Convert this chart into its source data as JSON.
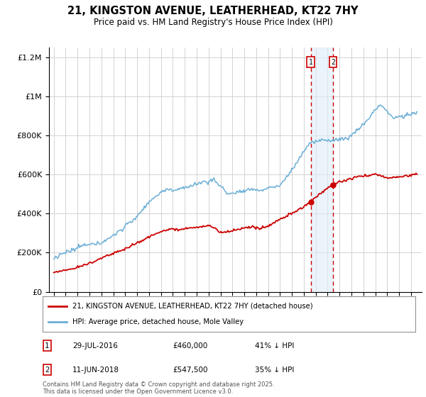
{
  "title": "21, KINGSTON AVENUE, LEATHERHEAD, KT22 7HY",
  "subtitle": "Price paid vs. HM Land Registry's House Price Index (HPI)",
  "hpi_label": "HPI: Average price, detached house, Mole Valley",
  "property_label": "21, KINGSTON AVENUE, LEATHERHEAD, KT22 7HY (detached house)",
  "sale1_date": "29-JUL-2016",
  "sale1_price": 460000,
  "sale1_pct": "41% ↓ HPI",
  "sale2_date": "11-JUN-2018",
  "sale2_price": 547500,
  "sale2_pct": "35% ↓ HPI",
  "sale1_year": 2016.58,
  "sale2_year": 2018.44,
  "footnote": "Contains HM Land Registry data © Crown copyright and database right 2025.\nThis data is licensed under the Open Government Licence v3.0.",
  "ylim_max": 1250000,
  "hpi_color": "#6aaed6",
  "property_color": "#cc0000",
  "grid_color": "#cccccc",
  "background_color": "#ffffff",
  "shaded_color": "#ddeef8"
}
